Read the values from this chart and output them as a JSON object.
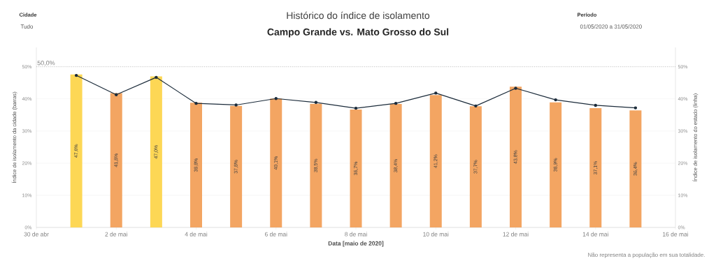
{
  "chart_data": {
    "type": "bar",
    "title": "Histórico do índice de isolamento",
    "subtitle": "Campo Grande vs. Mato Grosso do Sul",
    "xlabel": "Data [maio de 2020]",
    "ylabel": "Índice de isolamento da cidade (barras)",
    "y2label": "Índice de isolamento do estado (linha)",
    "annotations": [
      "Cidade",
      "Tudo",
      "Período",
      "01/05/2020 a 31/05/2020",
      "Não representa a população em sua totalidade."
    ],
    "x": [
      "2020-05-01",
      "2020-05-02",
      "2020-05-03",
      "2020-05-04",
      "2020-05-05",
      "2020-05-06",
      "2020-05-07",
      "2020-05-08",
      "2020-05-09",
      "2020-05-10",
      "2020-05-11",
      "2020-05-12",
      "2020-05-13",
      "2020-05-14",
      "2020-05-15"
    ],
    "series": [
      {
        "colors": [
          "#fdd755",
          "#f3a562",
          "#fdd755",
          "#f3a562",
          "#f3a562",
          "#f3a562",
          "#f3a562",
          "#f3a562",
          "#f3a562",
          "#f3a562",
          "#f3a562",
          "#f3a562",
          "#f3a562",
          "#f3a562",
          "#f3a562"
        ],
        "values": [
          47.6,
          41.8,
          47.0,
          38.8,
          37.8,
          40.1,
          38.5,
          36.7,
          38.4,
          41.2,
          37.7,
          43.8,
          38.9,
          37.1,
          36.4
        ],
        "value_labels": [
          "47,6%",
          "41,8%",
          "47,0%",
          "38,8%",
          "37,8%",
          "40,1%",
          "38,5%",
          "36,7%",
          "38,4%",
          "41,2%",
          "37,7%",
          "43,8%",
          "38,9%",
          "37,1%",
          "36,4%"
        ]
      },
      {
        "type": "line",
        "axis": "y2",
        "color": "#1b2b3a",
        "marker": "circle",
        "values": [
          47.3,
          41.3,
          46.7,
          38.6,
          38.1,
          40.1,
          38.9,
          37.1,
          38.6,
          41.8,
          37.8,
          43.3,
          39.7,
          38.0,
          37.2
        ]
      }
    ],
    "xlim": [
      "2020-04-30",
      "2020-05-16"
    ],
    "xticks": [
      {
        "value": "2020-04-30",
        "label": "30 de abr"
      },
      {
        "value": "2020-05-02",
        "label": "2 de mai"
      },
      {
        "value": "2020-05-04",
        "label": "4 de mai"
      },
      {
        "value": "2020-05-06",
        "label": "6 de mai"
      },
      {
        "value": "2020-05-08",
        "label": "8 de mai"
      },
      {
        "value": "2020-05-10",
        "label": "10 de mai"
      },
      {
        "value": "2020-05-12",
        "label": "12 de mai"
      },
      {
        "value": "2020-05-14",
        "label": "14 de mai"
      },
      {
        "value": "2020-05-16",
        "label": "16 de mai"
      }
    ],
    "ylim": [
      0,
      56
    ],
    "yticks": [
      {
        "value": 0,
        "label": "0%"
      },
      {
        "value": 10,
        "label": "10%"
      },
      {
        "value": 20,
        "label": "20%"
      },
      {
        "value": 30,
        "label": "30%"
      },
      {
        "value": 40,
        "label": "40%"
      },
      {
        "value": 50,
        "label": "50%"
      }
    ],
    "y2lim": [
      0,
      56
    ],
    "y2ticks": [
      {
        "value": 0,
        "label": "0%"
      },
      {
        "value": 10,
        "label": "10%"
      },
      {
        "value": 20,
        "label": "20%"
      },
      {
        "value": 30,
        "label": "30%"
      },
      {
        "value": 40,
        "label": "40%"
      },
      {
        "value": 50,
        "label": "50%"
      }
    ],
    "ref_lines": [
      {
        "axis": "y",
        "value": 50,
        "label": "50,0%",
        "color": "#aaaaaa",
        "line_style": "dotted"
      }
    ],
    "grid": "y"
  }
}
